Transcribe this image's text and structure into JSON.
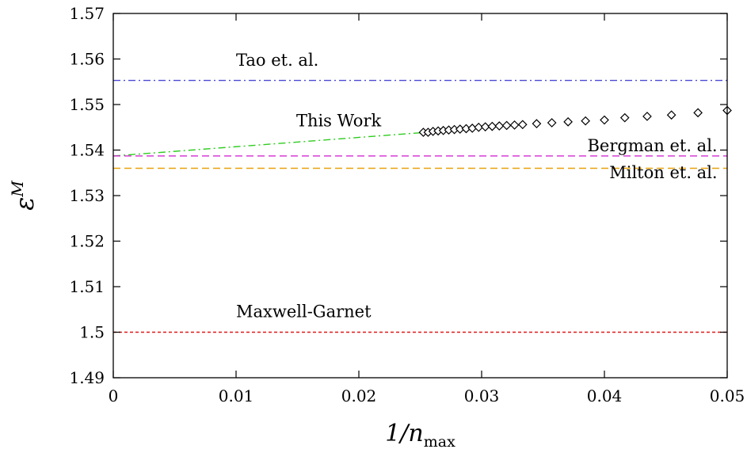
{
  "chart_data": {
    "type": "scatter",
    "xlabel": "1/n_max",
    "ylabel": "ε^M",
    "xlim": [
      0,
      0.05
    ],
    "ylim": [
      1.49,
      1.57
    ],
    "xticks": [
      0,
      0.01,
      0.02,
      0.03,
      0.04,
      0.05
    ],
    "xtick_labels": [
      "0",
      "0.01",
      "0.02",
      "0.03",
      "0.04",
      "0.05"
    ],
    "yticks": [
      1.49,
      1.5,
      1.51,
      1.52,
      1.53,
      1.54,
      1.55,
      1.56,
      1.57
    ],
    "ytick_labels": [
      "1.49",
      "1.5",
      "1.51",
      "1.52",
      "1.53",
      "1.54",
      "1.55",
      "1.56",
      "1.57"
    ],
    "grid": false,
    "legend": "none",
    "series": [
      {
        "name": "This Work",
        "style": "markers",
        "marker": "diamond",
        "color": "#000000",
        "x": [
          0.02525,
          0.02564,
          0.02604,
          0.02646,
          0.02688,
          0.02732,
          0.02778,
          0.02824,
          0.02874,
          0.02924,
          0.02976,
          0.0303,
          0.03086,
          0.03144,
          0.03204,
          0.03268,
          0.03334,
          0.03448,
          0.03572,
          0.03704,
          0.03846,
          0.04,
          0.04166,
          0.04348,
          0.04546,
          0.04762,
          0.05
        ],
        "y": [
          1.5439,
          1.5439,
          1.5441,
          1.5442,
          1.5443,
          1.5444,
          1.5445,
          1.5446,
          1.5447,
          1.5448,
          1.545,
          1.5451,
          1.5452,
          1.5453,
          1.5454,
          1.5455,
          1.5456,
          1.5458,
          1.546,
          1.5462,
          1.5464,
          1.5466,
          1.5471,
          1.5474,
          1.5477,
          1.5482,
          1.5487
        ]
      },
      {
        "name": "This Work",
        "style": "dash-dot",
        "color": "#2ecc1f",
        "x": [
          0,
          0.025
        ],
        "y": [
          1.5387,
          1.5438
        ]
      },
      {
        "name": "Tao et. al.",
        "style": "dash-dot",
        "color": "#4a4ad6",
        "x": [
          0,
          0.05
        ],
        "y": [
          1.5553,
          1.5553
        ]
      },
      {
        "name": "Bergman et. al.",
        "style": "dashed",
        "color": "#d42ad4",
        "x": [
          0,
          0.05
        ],
        "y": [
          1.5387,
          1.5387
        ]
      },
      {
        "name": "Milton et. al.",
        "style": "dashed",
        "color": "#e8a20c",
        "x": [
          0,
          0.05
        ],
        "y": [
          1.536,
          1.536
        ]
      },
      {
        "name": "Maxwell-Garnet",
        "style": "dotted",
        "color": "#e01818",
        "x": [
          0,
          0.05
        ],
        "y": [
          1.5,
          1.5
        ]
      }
    ],
    "annotations": [
      {
        "text": "Tao et. al.",
        "x": 0.01,
        "y": 1.5585,
        "anchor": "start"
      },
      {
        "text": "This Work",
        "x": 0.0149,
        "y": 1.5452,
        "anchor": "start"
      },
      {
        "text": "Bergman et. al.",
        "x": 0.0492,
        "y": 1.5397,
        "anchor": "end"
      },
      {
        "text": "Milton et. al.",
        "x": 0.0492,
        "y": 1.5338,
        "anchor": "end"
      },
      {
        "text": "Maxwell-Garnet",
        "x": 0.01,
        "y": 1.5033,
        "anchor": "start"
      }
    ]
  }
}
